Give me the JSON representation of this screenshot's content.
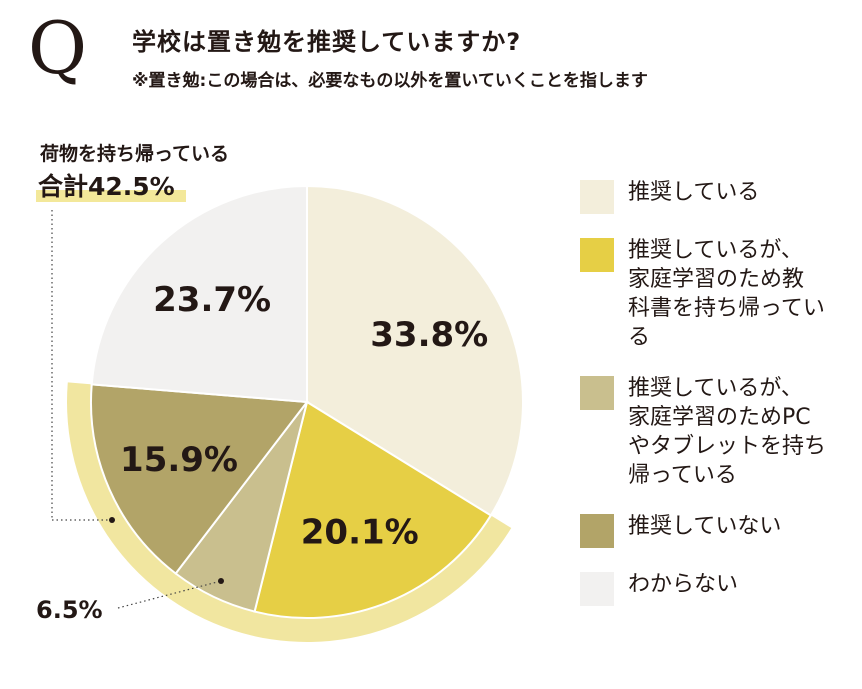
{
  "header": {
    "q_mark": "Q",
    "title": "学校は置き勉を推奨していますか?",
    "subtitle": "※置き勉:この場合は、必要なもの以外を置いていくことを指します"
  },
  "callouts": {
    "group_caption": "荷物を持ち帰っている",
    "group_total": "合計42.5%",
    "small_slice": "6.5%"
  },
  "colors": {
    "highlight_ring": "#f1e6a0",
    "highlight_underline": "#f3e89a",
    "text": "#231815"
  },
  "chart_data": {
    "type": "pie",
    "start_angle": "12 o'clock",
    "direction": "clockwise",
    "slices": [
      {
        "label": "推奨している",
        "value": 33.8,
        "display": "33.8%",
        "color": "#f3eedb"
      },
      {
        "label": "推奨しているが、\n家庭学習のため教\n科書を持ち帰ってい\nる",
        "value": 20.1,
        "display": "20.1%",
        "color": "#e6cf45"
      },
      {
        "label": "推奨しているが、\n家庭学習のためPC\nやタブレットを持ち\n帰っている",
        "value": 6.5,
        "display": "6.5%",
        "color": "#c9bf8e"
      },
      {
        "label": "推奨していない",
        "value": 15.9,
        "display": "15.9%",
        "color": "#b2a468"
      },
      {
        "label": "わからない",
        "value": 23.7,
        "display": "23.7%",
        "color": "#f2f1f0"
      }
    ],
    "highlight_group": {
      "caption": "荷物を持ち帰っている",
      "total": "合計42.5%",
      "slices": [
        1,
        2,
        3
      ]
    }
  }
}
